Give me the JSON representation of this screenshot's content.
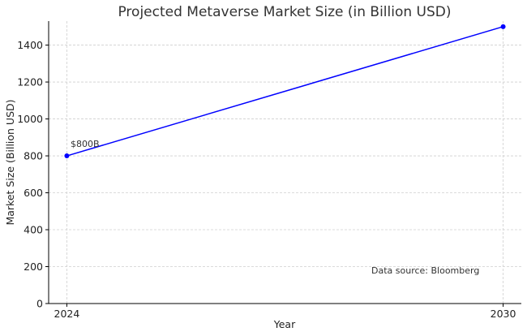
{
  "chart_data": {
    "type": "line",
    "title": "Projected Metaverse Market Size (in Billion USD)",
    "xlabel": "Year",
    "ylabel": "Market Size (Billion USD)",
    "x": [
      2024,
      2030
    ],
    "x_ticks": [
      "2024",
      "2030"
    ],
    "xlim": [
      2023.75,
      2030.25
    ],
    "ylim": [
      0,
      1530
    ],
    "y_ticks": [
      0,
      200,
      400,
      600,
      800,
      1000,
      1200,
      1400
    ],
    "grid": true,
    "series": [
      {
        "values": [
          800,
          1500
        ],
        "color": "#0000ff"
      }
    ],
    "annotations": [
      {
        "text": "$800B",
        "x": 2024,
        "y": 800
      },
      {
        "text": "Data source: Bloomberg"
      }
    ]
  }
}
